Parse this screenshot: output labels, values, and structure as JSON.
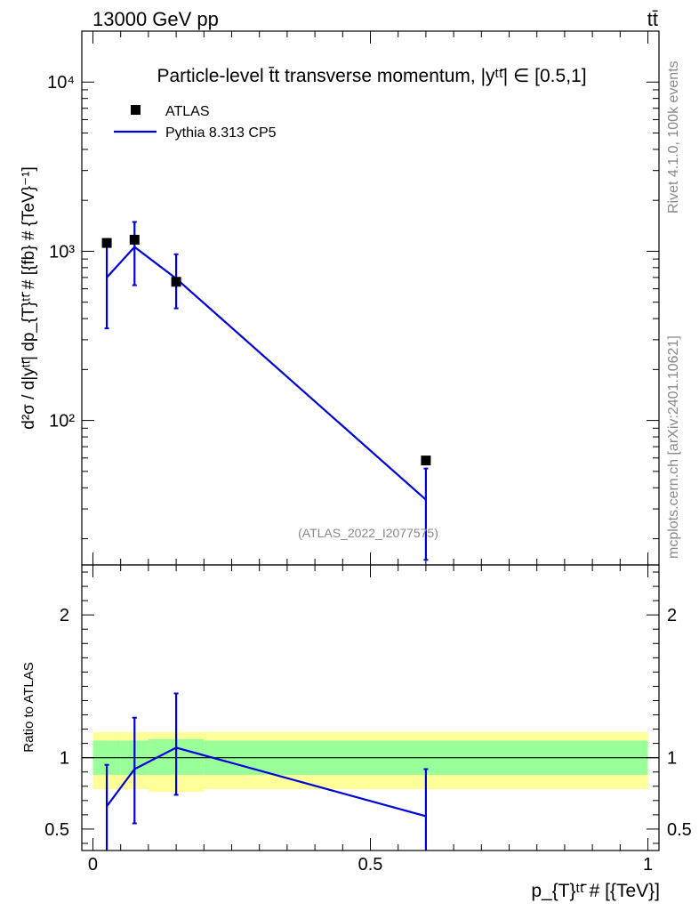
{
  "header": {
    "left": "13000 GeV pp",
    "right": "tt̄"
  },
  "side": {
    "rivet": "Rivet 4.1.0,  100k events",
    "mcplots": "mcplots.cern.ch [arXiv:2401.10621]"
  },
  "colors": {
    "mc": "#0000dd",
    "data": "#000000",
    "band_inner": "#99ff99",
    "band_outer": "#ffff99"
  },
  "chart_data": [
    {
      "type": "scatter",
      "title": "Particle-level t̄t transverse momentum, |yᵗᵗ̄| ∈ [0.5,1]",
      "ylabel": "d²σ / d|yᵗᵗ̄| dp_{T}ᵗᵗ̄ # [{fb} # {TeV}⁻¹]",
      "yscale": "log",
      "ylim": [
        14,
        20000
      ],
      "xlim": [
        -0.02,
        1.02
      ],
      "ytick_labels": [
        "10²",
        "10³",
        "10⁴"
      ],
      "ytick_values": [
        100,
        1000,
        10000
      ],
      "watermark": "(ATLAS_2022_I2077575)",
      "legend": {
        "position": "top-left",
        "data_label": "ATLAS",
        "mc_label": "Pythia 8.313 CP5"
      },
      "series": [
        {
          "name": "ATLAS",
          "x": [
            0.025,
            0.075,
            0.15,
            0.6
          ],
          "values": [
            1120,
            1170,
            660,
            58
          ]
        },
        {
          "name": "Pythia 8.313 CP5",
          "x": [
            0.025,
            0.075,
            0.15,
            0.6
          ],
          "values": [
            700,
            1060,
            690,
            34
          ],
          "err_low": [
            350,
            630,
            460,
            15
          ],
          "err_high": [
            1070,
            1490,
            960,
            52
          ]
        }
      ]
    },
    {
      "type": "line",
      "ylabel": "Ratio to ATLAS",
      "xlabel": "p_{T}ᵗᵗ̄ # [{TeV}]",
      "xlim": [
        -0.02,
        1.02
      ],
      "ylim": [
        0.35,
        2.35
      ],
      "ytick_labels": [
        "0.5",
        "1",
        "2"
      ],
      "ytick_values": [
        0.5,
        1,
        2
      ],
      "xtick_labels": [
        "0",
        "0.5",
        "1"
      ],
      "xtick_values": [
        0,
        0.5,
        1
      ],
      "reference_line": 1,
      "band_edges": [
        0.0,
        0.05,
        0.1,
        0.2,
        1.0
      ],
      "band_inner": [
        [
          0.88,
          1.12
        ],
        [
          0.88,
          1.12
        ],
        [
          0.88,
          1.13
        ],
        [
          0.88,
          1.12
        ]
      ],
      "band_outer": [
        [
          0.78,
          1.18
        ],
        [
          0.78,
          1.18
        ],
        [
          0.76,
          1.18
        ],
        [
          0.78,
          1.18
        ]
      ],
      "series": [
        {
          "name": "Pythia 8.313 CP5",
          "x": [
            0.025,
            0.075,
            0.15,
            0.6
          ],
          "values": [
            0.66,
            0.92,
            1.07,
            0.59
          ],
          "err_low": [
            0.3,
            0.54,
            0.74,
            0.3
          ],
          "err_high": [
            0.95,
            1.28,
            1.45,
            0.92
          ]
        }
      ]
    }
  ]
}
